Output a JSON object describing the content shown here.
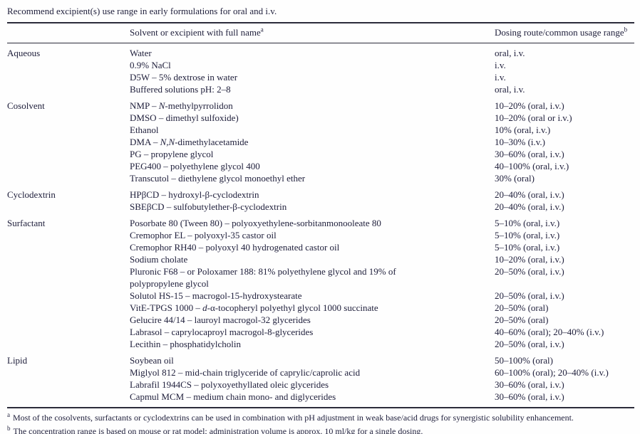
{
  "title": "Recommend excipient(s) use range in early formulations for oral and i.v.",
  "colors": {
    "text": "#21213d",
    "rule": "#2b2b3a",
    "background": "#fefefe"
  },
  "table": {
    "columns": [
      {
        "label": "",
        "sup": ""
      },
      {
        "label": "Solvent or excipient with full name",
        "sup": "a"
      },
      {
        "label": "Dosing route/common usage range",
        "sup": "b"
      }
    ],
    "sections": [
      {
        "category": "Aqueous",
        "rows": [
          {
            "name": "Water",
            "dosing": "oral, i.v."
          },
          {
            "name": "0.9% NaCl",
            "dosing": "i.v."
          },
          {
            "name": "D5W – 5% dextrose in water",
            "dosing": "i.v."
          },
          {
            "name": "Buffered solutions pH: 2–8",
            "dosing": "oral, i.v."
          }
        ]
      },
      {
        "category": "Cosolvent",
        "rows": [
          {
            "name": "NMP – *N*-methylpyrrolidon",
            "dosing": "10–20% (oral, i.v.)"
          },
          {
            "name": "DMSO – dimethyl sulfoxide)",
            "dosing": "10–20% (oral or i.v.)"
          },
          {
            "name": "Ethanol",
            "dosing": "10% (oral, i.v.)"
          },
          {
            "name": "DMA – *N,N*-dimethylacetamide",
            "dosing": "10–30% (i.v.)"
          },
          {
            "name": "PG – propylene glycol",
            "dosing": "30–60% (oral, i.v.)"
          },
          {
            "name": "PEG400 – polyethylene glycol 400",
            "dosing": "40–100% (oral, i.v.)"
          },
          {
            "name": "Transcutol – diethylene glycol monoethyl ether",
            "dosing": "30% (oral)"
          }
        ]
      },
      {
        "category": "Cyclodextrin",
        "rows": [
          {
            "name": "HPβCD – hydroxyl-β-cyclodextrin",
            "dosing": "20–40% (oral, i.v.)"
          },
          {
            "name": "SBEβCD – sulfobutylether-β-cyclodextrin",
            "dosing": "20–40% (oral, i.v.)"
          }
        ]
      },
      {
        "category": "Surfactant",
        "rows": [
          {
            "name": "Posorbate 80 (Tween 80) – polyoxyethylene-sorbitanmonooleate 80",
            "dosing": "5–10% (oral, i.v.)"
          },
          {
            "name": "Cremophor EL – polyoxyl-35 castor oil",
            "dosing": "5–10% (oral, i.v.)"
          },
          {
            "name": "Cremophor RH40 – polyoxyl 40 hydrogenated castor oil",
            "dosing": "5–10% (oral, i.v.)"
          },
          {
            "name": "Sodium cholate",
            "dosing": "10–20% (oral, i.v.)"
          },
          {
            "name": "Pluronic F68 – or Poloxamer 188: 81% polyethylene glycol and 19% of\npolypropylene glycol",
            "dosing": "20–50% (oral, i.v.)"
          },
          {
            "name": "Solutol HS-15 – macrogol-15-hydroxystearate",
            "dosing": "20–50% (oral, i.v.)"
          },
          {
            "name": "VitE-TPGS 1000 – *d*-α-tocopheryl polyethyl glycol 1000 succinate",
            "dosing": "20–50% (oral)"
          },
          {
            "name": "Gelucire 44/14 – lauroyl macrogol-32 glycerides",
            "dosing": "20–50% (oral)"
          },
          {
            "name": "Labrasol – caprylocaproyl macrogol-8-glycerides",
            "dosing": "40–60% (oral); 20–40% (i.v.)"
          },
          {
            "name": "Lecithin – phosphatidylcholin",
            "dosing": "20–50% (oral, i.v.)"
          }
        ]
      },
      {
        "category": "Lipid",
        "rows": [
          {
            "name": "Soybean oil",
            "dosing": "50–100% (oral)"
          },
          {
            "name": "Miglyol 812 – mid-chain triglyceride of caprylic/caprolic acid",
            "dosing": "60–100% (oral); 20–40% (i.v.)"
          },
          {
            "name": "Labrafil 1944CS – polyxoyethyllated oleic glycerides",
            "dosing": "30–60% (oral, i.v.)"
          },
          {
            "name": "Capmul MCM – medium chain mono- and diglycerides",
            "dosing": "30–60% (oral, i.v.)"
          }
        ]
      }
    ]
  },
  "footnotes": [
    {
      "marker": "a",
      "text": "Most of the cosolvents, surfactants or cyclodextrins can be used in combination with pH adjustment in weak base/acid drugs for synergistic solubility enhancement."
    },
    {
      "marker": "b",
      "text": "The concentration range is based on mouse or rat model; administration volume is approx. 10 ml/kg for a single dosing."
    }
  ]
}
